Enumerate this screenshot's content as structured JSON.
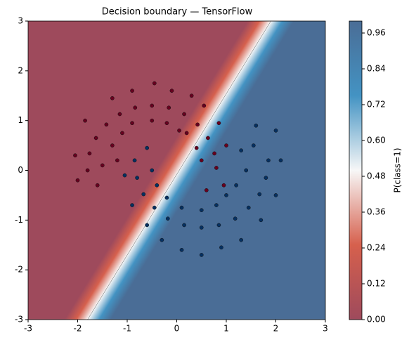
{
  "chart_data": {
    "type": "decision-boundary",
    "title": "Decision boundary — TensorFlow",
    "xlim": [
      -3,
      3
    ],
    "ylim": [
      -3,
      3
    ],
    "xticks": [
      -3,
      -2,
      -1,
      0,
      1,
      2,
      3
    ],
    "yticks": [
      -3,
      -2,
      -1,
      0,
      1,
      2,
      3
    ],
    "boundary": {
      "x": [
        -1.8,
        1.9
      ],
      "y": [
        -3,
        3
      ],
      "colors": [
        "#9e4a5c",
        "#d6604d",
        "#f7f7f7",
        "#4393c3",
        "#4a6d96"
      ]
    },
    "colorbar": {
      "label": "P(class=1)",
      "lim": [
        0,
        1
      ],
      "ticks": [
        {
          "value": 0,
          "label": "0.00"
        },
        {
          "value": 0.12,
          "label": "0.12"
        },
        {
          "value": 0.24,
          "label": "0.24"
        },
        {
          "value": 0.36,
          "label": "0.36"
        },
        {
          "value": 0.48,
          "label": "0.48"
        },
        {
          "value": 0.6,
          "label": "0.60"
        },
        {
          "value": 0.72,
          "label": "0.72"
        },
        {
          "value": 0.84,
          "label": "0.84"
        },
        {
          "value": 0.96,
          "label": "0.96"
        }
      ]
    },
    "series": [
      {
        "color": "#67001f",
        "x": [
          0.8,
          0.95,
          0.6,
          0.76,
          0.5,
          1.0,
          0.63,
          0.4,
          0.85,
          0.42,
          0.2,
          0.55,
          0.15,
          0.05,
          0.3,
          -0.16,
          -0.2,
          -0.1,
          -0.5,
          -0.5,
          -0.45,
          -0.84,
          -0.9,
          -0.9,
          -1.15,
          -1.1,
          -1.3,
          -1.42,
          -1.3,
          -1.63,
          -1.85,
          -1.76,
          -1.5,
          -2.05,
          -1.8,
          -1.6,
          -2.0,
          -1.2
        ],
        "y": [
          0.05,
          -0.3,
          -0.4,
          0.34,
          0.2,
          0.5,
          0.65,
          0.45,
          0.95,
          0.92,
          0.75,
          1.3,
          1.13,
          0.8,
          1.5,
          1.26,
          0.95,
          1.6,
          1.3,
          1.0,
          1.75,
          1.26,
          0.95,
          1.6,
          1.13,
          0.75,
          1.45,
          0.92,
          0.5,
          0.65,
          1.0,
          0.34,
          0.1,
          0.3,
          0.0,
          -0.3,
          -0.2,
          0.2
        ]
      },
      {
        "color": "#053061",
        "x": [
          -0.85,
          -0.6,
          -1.05,
          -0.8,
          -0.5,
          -0.67,
          -0.9,
          -0.4,
          -0.45,
          -0.6,
          -0.2,
          -0.18,
          -0.3,
          0.15,
          0.1,
          0.1,
          0.5,
          0.5,
          0.5,
          0.85,
          0.8,
          0.9,
          1.18,
          1.0,
          1.3,
          1.45,
          1.2,
          1.7,
          1.67,
          1.4,
          2.0,
          1.8,
          1.55,
          2.1,
          1.85,
          1.6,
          2.0,
          1.3
        ],
        "y": [
          0.2,
          0.45,
          -0.1,
          -0.15,
          0.0,
          -0.48,
          -0.7,
          -0.3,
          -0.75,
          -1.1,
          -0.55,
          -0.97,
          -1.4,
          -1.1,
          -0.75,
          -1.6,
          -1.15,
          -0.8,
          -1.7,
          -1.1,
          -0.7,
          -1.55,
          -0.97,
          -0.5,
          -1.4,
          -0.75,
          -0.3,
          -1.0,
          -0.48,
          0.0,
          -0.5,
          -0.15,
          0.5,
          0.2,
          0.2,
          0.9,
          0.8,
          0.4
        ]
      }
    ]
  }
}
